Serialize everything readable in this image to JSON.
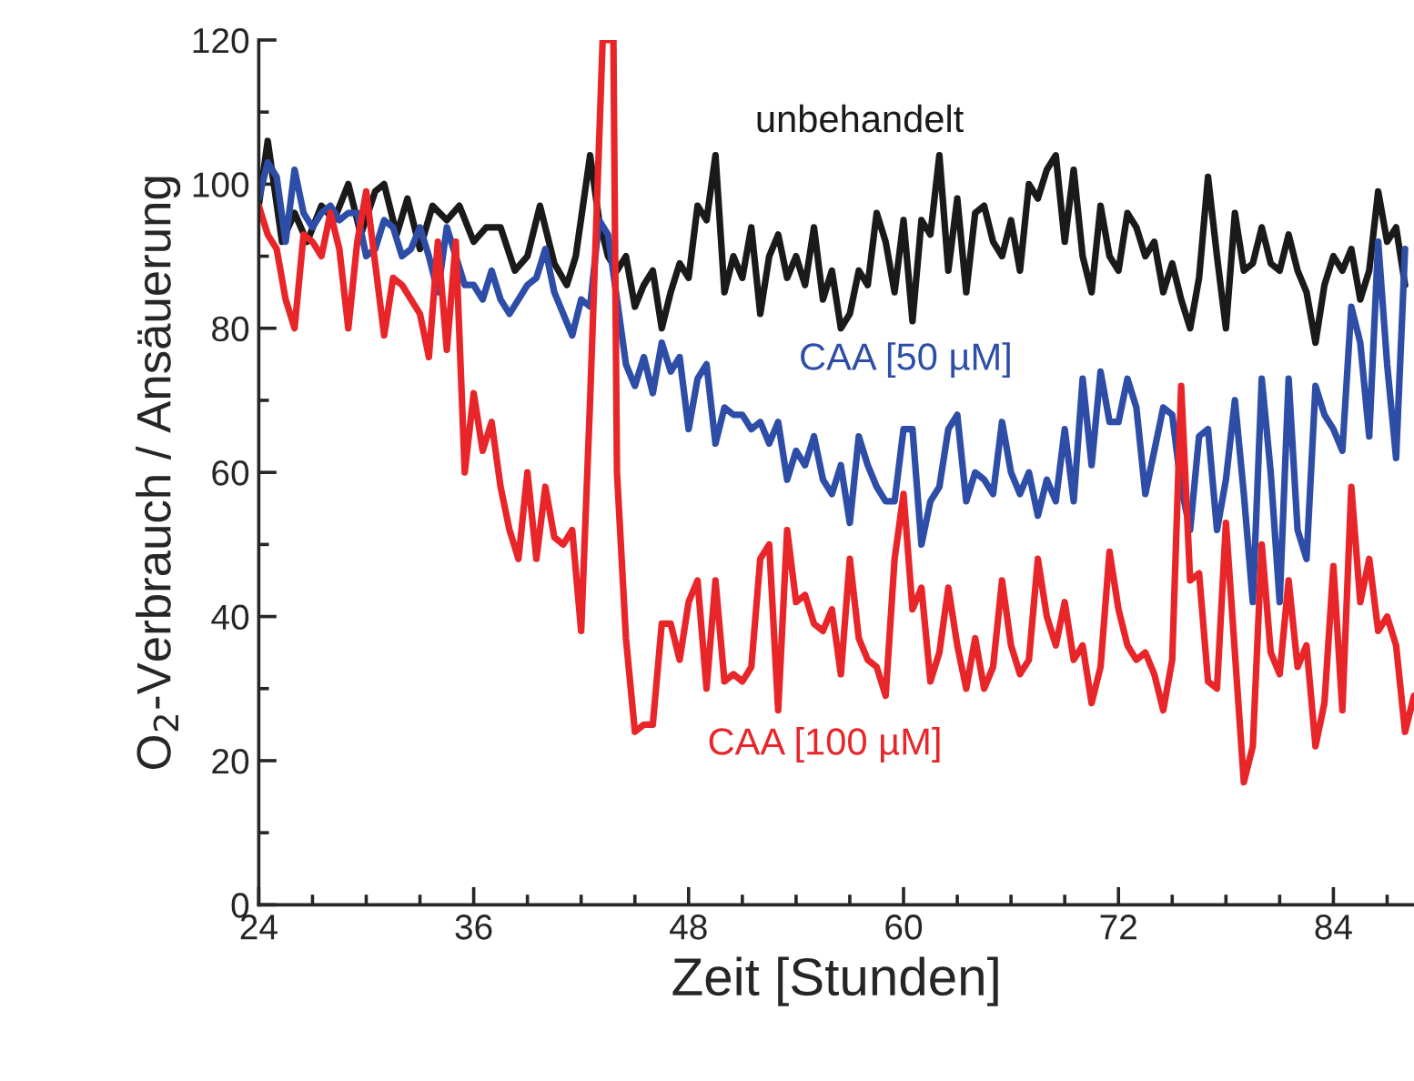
{
  "chart_data": {
    "type": "line",
    "xlabel": "Zeit [Stunden]",
    "ylabel": "O$_{2}$-Verbrauch / Ansäuerung",
    "xlim": [
      24,
      88.5
    ],
    "ylim": [
      0,
      120
    ],
    "xticks": [
      24,
      36,
      48,
      60,
      72,
      84
    ],
    "yticks": [
      0,
      20,
      40,
      60,
      80,
      100,
      120
    ],
    "grid": false,
    "legend": false,
    "marker": "none",
    "line_style": "solid",
    "series": [
      {
        "name": "unbehandelt",
        "color": "#1a1a1a",
        "x": [
          24,
          24.5,
          25.3,
          26,
          26.7,
          27.5,
          28.2,
          29,
          29.7,
          30.5,
          31,
          31.7,
          32.3,
          33,
          33.7,
          34.5,
          35.2,
          36,
          36.7,
          37.5,
          38.3,
          39,
          39.7,
          40.5,
          41.2,
          41.7,
          42.5,
          43,
          43.5,
          44,
          44.5,
          45,
          45.5,
          46,
          46.5,
          47,
          47.5,
          48,
          48.5,
          49,
          49.5,
          50,
          50.5,
          51,
          51.5,
          52,
          52.5,
          53,
          53.5,
          54,
          54.5,
          55,
          55.5,
          56,
          56.5,
          57,
          57.5,
          58,
          58.5,
          59,
          59.5,
          60,
          60.5,
          61,
          61.5,
          62,
          62.5,
          63,
          63.5,
          64,
          64.5,
          65,
          65.5,
          66,
          66.5,
          67,
          67.5,
          68,
          68.5,
          69,
          69.5,
          70,
          70.5,
          71,
          71.5,
          72,
          72.5,
          73,
          73.5,
          74,
          74.5,
          75,
          75.5,
          76,
          76.5,
          77,
          77.5,
          78,
          78.5,
          79,
          79.5,
          80,
          80.5,
          81,
          81.5,
          82,
          82.5,
          83,
          83.5,
          84,
          84.5,
          85,
          85.5,
          86,
          86.5,
          87,
          87.5,
          88
        ],
        "values": [
          97,
          106,
          92,
          96,
          92,
          97,
          95,
          100,
          93,
          99,
          100,
          93,
          98,
          91,
          97,
          95,
          97,
          92,
          94,
          94,
          88,
          90,
          97,
          89,
          86,
          90,
          104,
          95,
          90,
          88,
          90,
          83,
          86,
          88,
          80,
          85,
          89,
          87,
          97,
          95,
          104,
          85,
          90,
          87,
          94,
          82,
          90,
          93,
          87,
          90,
          86,
          94,
          84,
          88,
          80,
          82,
          88,
          86,
          96,
          92,
          85,
          95,
          81,
          95,
          93,
          104,
          88,
          98,
          85,
          96,
          97,
          92,
          90,
          95,
          88,
          100,
          98,
          102,
          104,
          92,
          102,
          90,
          85,
          97,
          90,
          88,
          96,
          94,
          90,
          92,
          85,
          89,
          84,
          80,
          87,
          101,
          90,
          80,
          96,
          88,
          89,
          94,
          89,
          88,
          93,
          88,
          85,
          78,
          86,
          90,
          88,
          91,
          84,
          88,
          99,
          92,
          94,
          86
        ]
      },
      {
        "name": "CAA [50 µM]",
        "color": "#2e4da7",
        "x": [
          24,
          24.5,
          25,
          25.5,
          26,
          26.5,
          27,
          27.5,
          28,
          28.5,
          29,
          29.5,
          30,
          30.5,
          31,
          31.5,
          32,
          32.5,
          33,
          33.5,
          34,
          34.5,
          35,
          35.5,
          36,
          36.5,
          37,
          37.5,
          38,
          38.5,
          39,
          39.5,
          40,
          40.5,
          41,
          41.5,
          42,
          42.5,
          43,
          43.5,
          44,
          44.5,
          45,
          45.5,
          46,
          46.5,
          47,
          47.5,
          48,
          48.5,
          49,
          49.5,
          50,
          50.5,
          51,
          51.5,
          52,
          52.5,
          53,
          53.5,
          54,
          54.5,
          55,
          55.5,
          56,
          56.5,
          57,
          57.5,
          58,
          58.5,
          59,
          59.5,
          60,
          60.5,
          61,
          61.5,
          62,
          62.5,
          63,
          63.5,
          64,
          64.5,
          65,
          65.5,
          66,
          66.5,
          67,
          67.5,
          68,
          68.5,
          69,
          69.5,
          70,
          70.5,
          71,
          71.5,
          72,
          72.5,
          73,
          73.5,
          74,
          74.5,
          75,
          75.5,
          76,
          76.5,
          77,
          77.5,
          78,
          78.5,
          79,
          79.5,
          80,
          80.5,
          81,
          81.5,
          82,
          82.5,
          83,
          83.5,
          84,
          84.5,
          85,
          85.5,
          86,
          86.5,
          87,
          87.5,
          88
        ],
        "values": [
          98,
          103,
          101,
          92,
          102,
          96,
          94,
          96,
          97,
          95,
          96,
          96,
          90,
          91,
          95,
          94,
          90,
          91,
          94,
          90,
          85,
          94,
          90,
          86,
          86,
          84,
          88,
          84,
          82,
          84,
          86,
          87,
          91,
          85,
          82,
          79,
          84,
          83,
          95,
          93,
          84,
          75,
          72,
          76,
          71,
          78,
          74,
          76,
          66,
          73,
          75,
          64,
          69,
          68,
          68,
          66,
          67,
          64,
          67,
          59,
          63,
          61,
          65,
          59,
          57,
          61,
          53,
          65,
          61,
          58,
          56,
          56,
          66,
          66,
          50,
          56,
          58,
          66,
          68,
          56,
          60,
          59,
          57,
          67,
          60,
          57,
          60,
          54,
          59,
          56,
          66,
          56,
          73,
          61,
          74,
          67,
          67,
          73,
          69,
          57,
          63,
          69,
          68,
          58,
          52,
          65,
          66,
          52,
          59,
          70,
          57,
          42,
          73,
          60,
          42,
          73,
          52,
          48,
          72,
          68,
          66,
          63,
          83,
          78,
          65,
          92,
          75,
          62,
          91
        ]
      },
      {
        "name": "CAA [100 µM]",
        "color": "#e8262a",
        "x": [
          24,
          24.5,
          25,
          25.5,
          26,
          26.5,
          27,
          27.5,
          28,
          28.5,
          29,
          29.5,
          30,
          30.5,
          31,
          31.5,
          32,
          32.5,
          33,
          33.5,
          34,
          34.5,
          35,
          35.5,
          36,
          36.5,
          37,
          37.5,
          38,
          38.5,
          39,
          39.5,
          40,
          40.5,
          41,
          41.5,
          42,
          42.5,
          43.2,
          43.8,
          44,
          44.5,
          45,
          45.5,
          46,
          46.5,
          47,
          47.5,
          48,
          48.5,
          49,
          49.5,
          50,
          50.5,
          51,
          51.5,
          52,
          52.5,
          53,
          53.5,
          54,
          54.5,
          55,
          55.5,
          56,
          56.5,
          57,
          57.5,
          58,
          58.5,
          59,
          59.5,
          60,
          60.5,
          61,
          61.5,
          62,
          62.5,
          63,
          63.5,
          64,
          64.5,
          65,
          65.5,
          66,
          66.5,
          67,
          67.5,
          68,
          68.5,
          69,
          69.5,
          70,
          70.5,
          71,
          71.5,
          72,
          72.5,
          73,
          73.5,
          74,
          74.5,
          75,
          75.5,
          76,
          76.5,
          77,
          77.5,
          78,
          78.5,
          79,
          79.5,
          80,
          80.5,
          81,
          81.5,
          82,
          82.5,
          83,
          83.5,
          84,
          84.5,
          85,
          85.5,
          86,
          86.5,
          87,
          87.5,
          88,
          88.5
        ],
        "values": [
          97,
          93,
          91,
          84,
          80,
          93,
          92,
          90,
          96,
          91,
          80,
          92,
          99,
          89,
          79,
          87,
          86,
          84,
          82,
          76,
          92,
          77,
          92,
          60,
          71,
          63,
          67,
          58,
          52,
          48,
          60,
          48,
          58,
          51,
          50,
          52,
          38,
          70,
          120,
          120,
          60,
          37,
          24,
          25,
          25,
          39,
          39,
          34,
          42,
          45,
          30,
          45,
          31,
          32,
          31,
          33,
          48,
          50,
          27,
          52,
          42,
          43,
          39,
          38,
          41,
          32,
          48,
          37,
          34,
          33,
          29,
          48,
          57,
          41,
          44,
          31,
          35,
          44,
          36,
          30,
          37,
          30,
          33,
          45,
          36,
          32,
          34,
          48,
          40,
          36,
          42,
          34,
          36,
          28,
          33,
          49,
          41,
          36,
          34,
          35,
          32,
          27,
          34,
          72,
          45,
          46,
          31,
          30,
          53,
          35,
          17,
          22,
          50,
          35,
          32,
          45,
          33,
          36,
          22,
          28,
          47,
          27,
          58,
          42,
          48,
          38,
          40,
          36,
          24,
          29
        ]
      }
    ]
  }
}
